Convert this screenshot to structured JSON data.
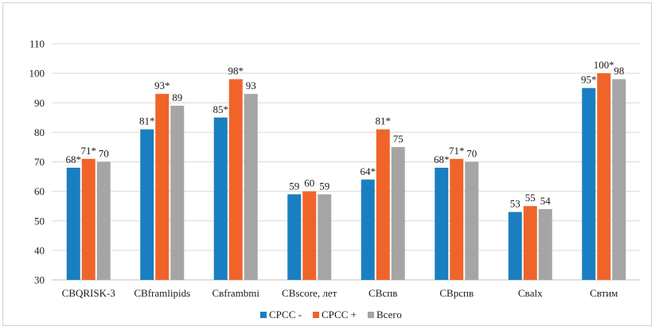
{
  "chart_data": {
    "type": "bar",
    "categories": [
      "CBQRISK-3",
      "CBframlipids",
      "Cвframbmi",
      "CBscore, лет",
      "CBcпв",
      "CBpcпв",
      "Cвalx",
      "Cвтим"
    ],
    "series": [
      {
        "name": "СРСС -",
        "color": "#1a7fc1",
        "values": [
          68,
          81,
          85,
          59,
          64,
          68,
          53,
          95
        ],
        "labels": [
          "68*",
          "81*",
          "85*",
          "59",
          "64*",
          "68*",
          "53",
          "95*"
        ]
      },
      {
        "name": "СРСС +",
        "color": "#f0642a",
        "values": [
          71,
          93,
          98,
          60,
          81,
          71,
          55,
          100
        ],
        "labels": [
          "71*",
          "93*",
          "98*",
          "60",
          "81*",
          "71*",
          "55",
          "100*"
        ]
      },
      {
        "name": "Всего",
        "color": "#a5a5a5",
        "values": [
          70,
          89,
          93,
          59,
          75,
          70,
          54,
          98
        ],
        "labels": [
          "70",
          "89",
          "93",
          "59",
          "75",
          "70",
          "54",
          "98"
        ]
      }
    ],
    "ylim": [
      30,
      110
    ],
    "yticks": [
      30,
      40,
      50,
      60,
      70,
      80,
      90,
      100,
      110
    ],
    "grid": true,
    "legend": "bottom"
  }
}
